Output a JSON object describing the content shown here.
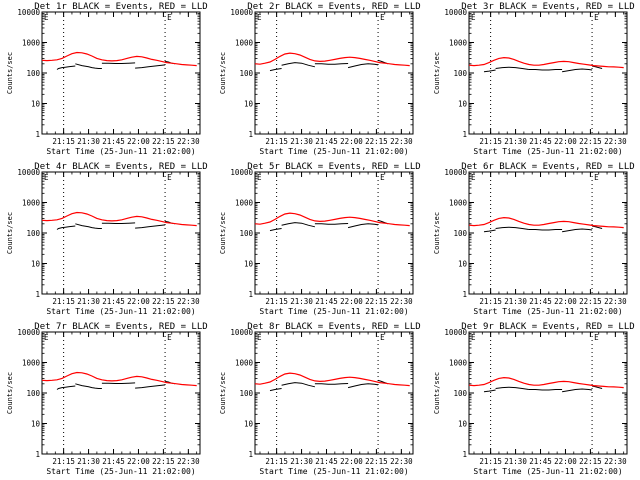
{
  "chart_data": {
    "type": "line",
    "panels": [
      {
        "title": "Det 1r BLACK = Events, RED = LLD",
        "variant": 0
      },
      {
        "title": "Det 2r BLACK = Events, RED = LLD",
        "variant": 1
      },
      {
        "title": "Det 3r BLACK = Events, RED = LLD",
        "variant": 2
      },
      {
        "title": "Det 4r BLACK = Events, RED = LLD",
        "variant": 0
      },
      {
        "title": "Det 5r BLACK = Events, RED = LLD",
        "variant": 1
      },
      {
        "title": "Det 6r BLACK = Events, RED = LLD",
        "variant": 2
      },
      {
        "title": "Det 7r BLACK = Events, RED = LLD",
        "variant": 0
      },
      {
        "title": "Det 8r BLACK = Events, RED = LLD",
        "variant": 1
      },
      {
        "title": "Det 9r BLACK = Events, RED = LLD",
        "variant": 2
      }
    ],
    "marker_label": "E",
    "xlabels": [
      "Start Time (25-Jun-11 21:02:00)",
      "Start Time (25-Jun-11 21:02:00)",
      "Start Time (25-Jun-11 21:02:00)",
      "Start Time (25-Jun-11 21:02:00)",
      "Start Time (25-Jun-11 21:02:00)",
      "Start Time (25-Jun-11 21:02:00)",
      "Start Time (25-Jun-11 21:02:00)",
      "Start Time (25-Jun-11 21:02:00)",
      "Start Time (25-Jun-11 21:02:00)"
    ],
    "ylabel": "Counts/sec",
    "x_ticks": [
      "21:15",
      "21:30",
      "21:45",
      "22:00",
      "22:15",
      "22:30"
    ],
    "x_tick_minutes": [
      13,
      28,
      43,
      58,
      73,
      88
    ],
    "xlim_minutes": [
      0,
      95
    ],
    "y_ticks": [
      "1",
      "10",
      "100",
      "1000",
      "10000"
    ],
    "ylim": [
      1,
      10000
    ],
    "y_scale": "log",
    "dotted_lines_minutes": [
      13,
      74
    ],
    "colors": {
      "events": "#000000",
      "lld": "#ff0000"
    },
    "series": [
      {
        "name": "Events",
        "color": "#000000",
        "segments_by_variant": [
          [
            {
              "x": [
                9,
                10,
                12,
                14,
                16,
                18,
                20
              ],
              "y": [
                130,
                140,
                150,
                155,
                160,
                165,
                170
              ]
            },
            {
              "x": [
                20,
                24,
                28,
                30,
                32,
                34,
                36
              ],
              "y": [
                200,
                175,
                160,
                150,
                145,
                140,
                140
              ]
            },
            {
              "x": [
                36,
                40,
                44,
                48,
                52,
                56
              ],
              "y": [
                210,
                210,
                205,
                205,
                210,
                215
              ]
            },
            {
              "x": [
                56,
                60,
                64,
                68,
                72,
                74
              ],
              "y": [
                145,
                150,
                160,
                170,
                180,
                185
              ]
            },
            {
              "x": [
                74,
                76,
                78,
                80
              ],
              "y": [
                240,
                230,
                210,
                200
              ]
            }
          ],
          [
            {
              "x": [
                9,
                12,
                14,
                16
              ],
              "y": [
                120,
                130,
                135,
                140
              ]
            },
            {
              "x": [
                16,
                20,
                24,
                28,
                32,
                36
              ],
              "y": [
                180,
                200,
                220,
                210,
                180,
                160
              ]
            },
            {
              "x": [
                36,
                40,
                44,
                48,
                52,
                56
              ],
              "y": [
                200,
                200,
                195,
                195,
                200,
                205
              ]
            },
            {
              "x": [
                56,
                60,
                64,
                68,
                72,
                74
              ],
              "y": [
                150,
                170,
                190,
                200,
                195,
                185
              ]
            },
            {
              "x": [
                74,
                76,
                78,
                80
              ],
              "y": [
                260,
                240,
                220,
                200
              ]
            }
          ],
          [
            {
              "x": [
                9,
                12,
                14,
                16
              ],
              "y": [
                110,
                115,
                120,
                125
              ]
            },
            {
              "x": [
                16,
                20,
                24,
                28,
                32,
                36
              ],
              "y": [
                140,
                150,
                155,
                150,
                140,
                130
              ]
            },
            {
              "x": [
                36,
                40,
                44,
                48,
                52,
                56
              ],
              "y": [
                130,
                130,
                125,
                125,
                130,
                130
              ]
            },
            {
              "x": [
                56,
                60,
                64,
                68,
                72,
                74
              ],
              "y": [
                110,
                120,
                130,
                135,
                130,
                125
              ]
            },
            {
              "x": [
                74,
                76,
                78,
                80
              ],
              "y": [
                170,
                160,
                150,
                140
              ]
            }
          ]
        ]
      },
      {
        "name": "LLD",
        "color": "#ff0000",
        "x": [
          0,
          3,
          6,
          9,
          12,
          15,
          18,
          21,
          24,
          27,
          30,
          33,
          36,
          39,
          42,
          45,
          48,
          51,
          54,
          57,
          60,
          63,
          66,
          69,
          72,
          75,
          78,
          81,
          84,
          87,
          90,
          93
        ],
        "y_by_variant": [
          [
            260,
            255,
            260,
            270,
            300,
            360,
            430,
            470,
            460,
            420,
            360,
            300,
            270,
            255,
            250,
            255,
            270,
            300,
            330,
            350,
            340,
            310,
            280,
            260,
            240,
            220,
            210,
            200,
            190,
            185,
            180,
            175
          ],
          [
            200,
            195,
            210,
            230,
            280,
            350,
            420,
            450,
            430,
            390,
            330,
            280,
            250,
            240,
            245,
            260,
            280,
            300,
            320,
            330,
            320,
            300,
            280,
            260,
            240,
            220,
            210,
            200,
            190,
            185,
            180,
            175
          ],
          [
            180,
            175,
            180,
            190,
            220,
            260,
            300,
            320,
            310,
            280,
            240,
            210,
            190,
            180,
            180,
            190,
            205,
            220,
            235,
            240,
            235,
            220,
            205,
            195,
            185,
            175,
            170,
            165,
            160,
            158,
            155,
            150
          ]
        ]
      }
    ]
  }
}
